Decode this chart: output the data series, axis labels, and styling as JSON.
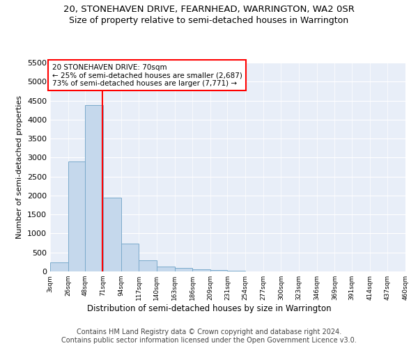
{
  "title1": "20, STONEHAVEN DRIVE, FEARNHEAD, WARRINGTON, WA2 0SR",
  "title2": "Size of property relative to semi-detached houses in Warrington",
  "xlabel": "Distribution of semi-detached houses by size in Warrington",
  "ylabel": "Number of semi-detached properties",
  "annotation_line1": "20 STONEHAVEN DRIVE: 70sqm",
  "annotation_line2": "← 25% of semi-detached houses are smaller (2,687)",
  "annotation_line3": "73% of semi-detached houses are larger (7,771) →",
  "footer1": "Contains HM Land Registry data © Crown copyright and database right 2024.",
  "footer2": "Contains public sector information licensed under the Open Government Licence v3.0.",
  "bar_edges": [
    3,
    26,
    48,
    71,
    94,
    117,
    140,
    163,
    186,
    209,
    231,
    254,
    277,
    300,
    323,
    346,
    369,
    391,
    414,
    437,
    460
  ],
  "bar_heights": [
    230,
    2900,
    4380,
    1940,
    740,
    290,
    120,
    85,
    55,
    30,
    15,
    8,
    5,
    3,
    2,
    1,
    1,
    0,
    0,
    0
  ],
  "bar_color": "#c5d8ec",
  "bar_edgecolor": "#7aaacb",
  "vline_x": 70,
  "vline_color": "red",
  "ylim": [
    0,
    5500
  ],
  "yticks": [
    0,
    500,
    1000,
    1500,
    2000,
    2500,
    3000,
    3500,
    4000,
    4500,
    5000,
    5500
  ],
  "bg_color": "#ffffff",
  "plot_bg_color": "#e8eef8",
  "annotation_box_color": "white",
  "annotation_box_edgecolor": "red",
  "title1_fontsize": 9.5,
  "title2_fontsize": 9,
  "annotation_fontsize": 7.5,
  "footer_fontsize": 7
}
